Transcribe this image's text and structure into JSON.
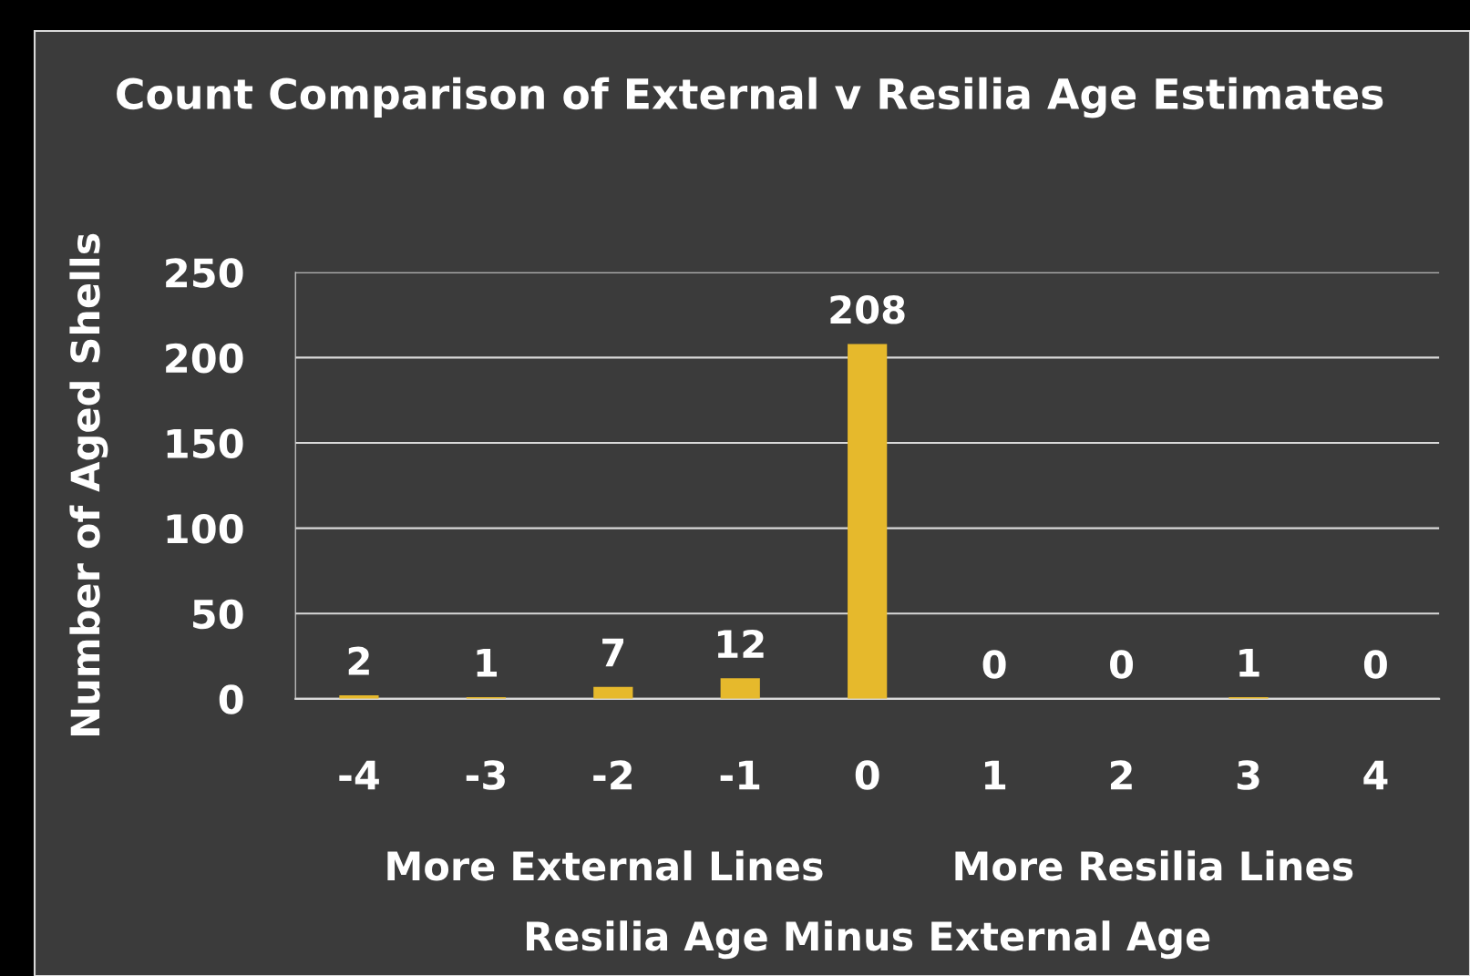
{
  "chart_data": {
    "type": "bar",
    "title": "Count Comparison of External v Resilia Age Estimates",
    "xlabel": "Resilia Age Minus External Age",
    "ylabel": "Number of Aged Shells",
    "categories": [
      "-4",
      "-3",
      "-2",
      "-1",
      "0",
      "1",
      "2",
      "3",
      "4"
    ],
    "values": [
      2,
      1,
      7,
      12,
      208,
      0,
      0,
      1,
      0
    ],
    "color": "#e6b92c",
    "ylim": [
      0,
      250
    ],
    "yticks": [
      0,
      50,
      100,
      150,
      200,
      250
    ],
    "grid": "y",
    "legend": false,
    "data_labels": true,
    "annotations": [
      "More External Lines",
      "More Resilia Lines"
    ]
  }
}
